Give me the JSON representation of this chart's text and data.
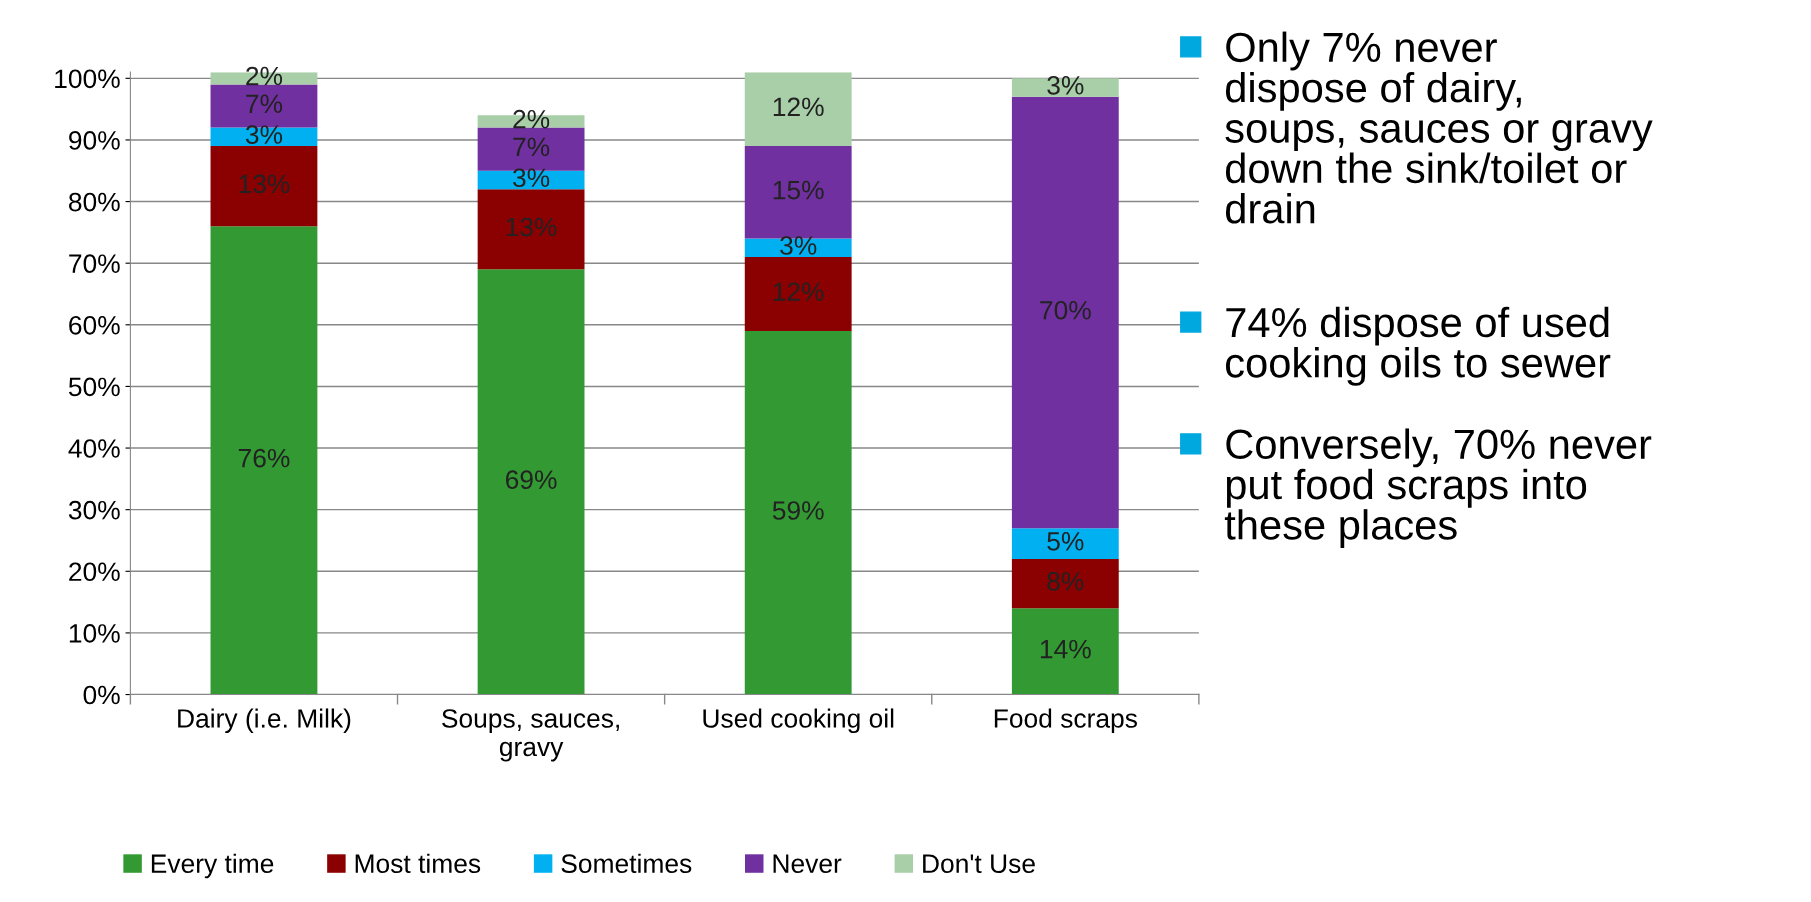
{
  "chart_data": {
    "type": "bar",
    "stacked": true,
    "categories": [
      "Dairy (i.e. Milk)",
      "Soups, sauces,\ngravy",
      "Used cooking oil",
      "Food scraps"
    ],
    "series": [
      {
        "name": "Every time",
        "color": "#339933",
        "values": [
          76,
          69,
          59,
          14
        ],
        "value_labels": [
          "76%",
          "69%",
          "59%",
          "14%"
        ]
      },
      {
        "name": "Most times",
        "color": "#8b0000",
        "values": [
          13,
          13,
          12,
          8
        ],
        "value_labels": [
          "13%",
          "13%",
          "12%",
          "8%"
        ]
      },
      {
        "name": "Sometimes",
        "color": "#00b0f0",
        "values": [
          3,
          3,
          3,
          5
        ],
        "value_labels": [
          "3%",
          "3%",
          "3%",
          "5%"
        ]
      },
      {
        "name": "Never",
        "color": "#7030a0",
        "values": [
          7,
          7,
          15,
          70
        ],
        "value_labels": [
          "7%",
          "7%",
          "15%",
          "70%"
        ]
      },
      {
        "name": "Don't Use",
        "color": "#a9cfa9",
        "values": [
          2,
          2,
          12,
          3
        ],
        "value_labels": [
          "2%",
          "2%",
          "12%",
          "3%"
        ]
      }
    ],
    "ylim": [
      0,
      101
    ],
    "yticks": [
      {
        "value": 0,
        "label": "0%"
      },
      {
        "value": 10,
        "label": "10%"
      },
      {
        "value": 20,
        "label": "20%"
      },
      {
        "value": 30,
        "label": "30%"
      },
      {
        "value": 40,
        "label": "40%"
      },
      {
        "value": 50,
        "label": "50%"
      },
      {
        "value": 60,
        "label": "60%"
      },
      {
        "value": 70,
        "label": "70%"
      },
      {
        "value": 80,
        "label": "80%"
      },
      {
        "value": 90,
        "label": "90%"
      },
      {
        "value": 100,
        "label": "100%"
      }
    ],
    "grid": "y",
    "legend": "bottom",
    "annotations": [
      "Only 7% never\ndispose of dairy,\nsoups, sauces or gravy\ndown the sink/toilet or\ndrain",
      "74% dispose of used\ncooking oils to sewer",
      "Conversely, 70% never\nput food scraps into\nthese places"
    ]
  }
}
